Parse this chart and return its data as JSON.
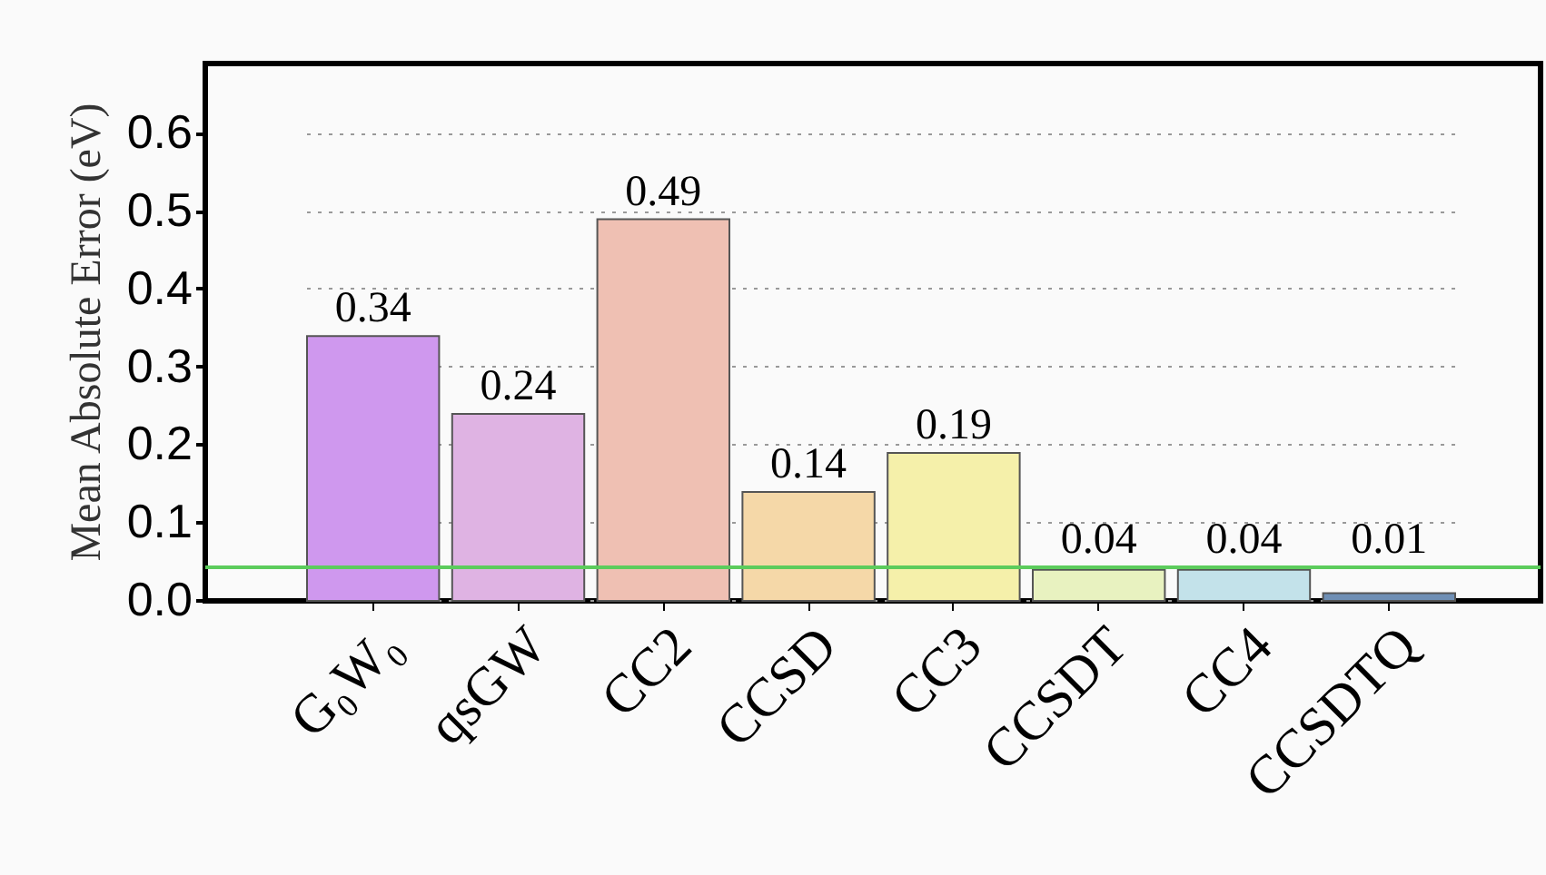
{
  "chart_data": {
    "type": "bar",
    "ylabel": "Mean Absolute Error (eV)",
    "categories": [
      "G₀W₀",
      "qsGW",
      "CC2",
      "CCSD",
      "CC3",
      "CCSDT",
      "CC4",
      "CCSDTQ"
    ],
    "values": [
      0.34,
      0.24,
      0.49,
      0.14,
      0.19,
      0.04,
      0.04,
      0.01
    ],
    "colors": [
      "#cf98ee",
      "#dfb3e3",
      "#efc0b3",
      "#f5d8a8",
      "#f5f0aa",
      "#e8f2c0",
      "#c3e2ea",
      "#6f8fb5"
    ],
    "ylim": [
      0,
      0.69
    ],
    "yticks": [
      {
        "value": 0,
        "label": "0.0"
      },
      0.1,
      0.2,
      0.3,
      0.4,
      0.5,
      0.6
    ],
    "grid": "y",
    "data_labels": true,
    "ref_lines": [
      {
        "axis": "y",
        "value": 0.043,
        "label": null,
        "color": "#5ccc5c",
        "line_style": "solid"
      }
    ]
  }
}
